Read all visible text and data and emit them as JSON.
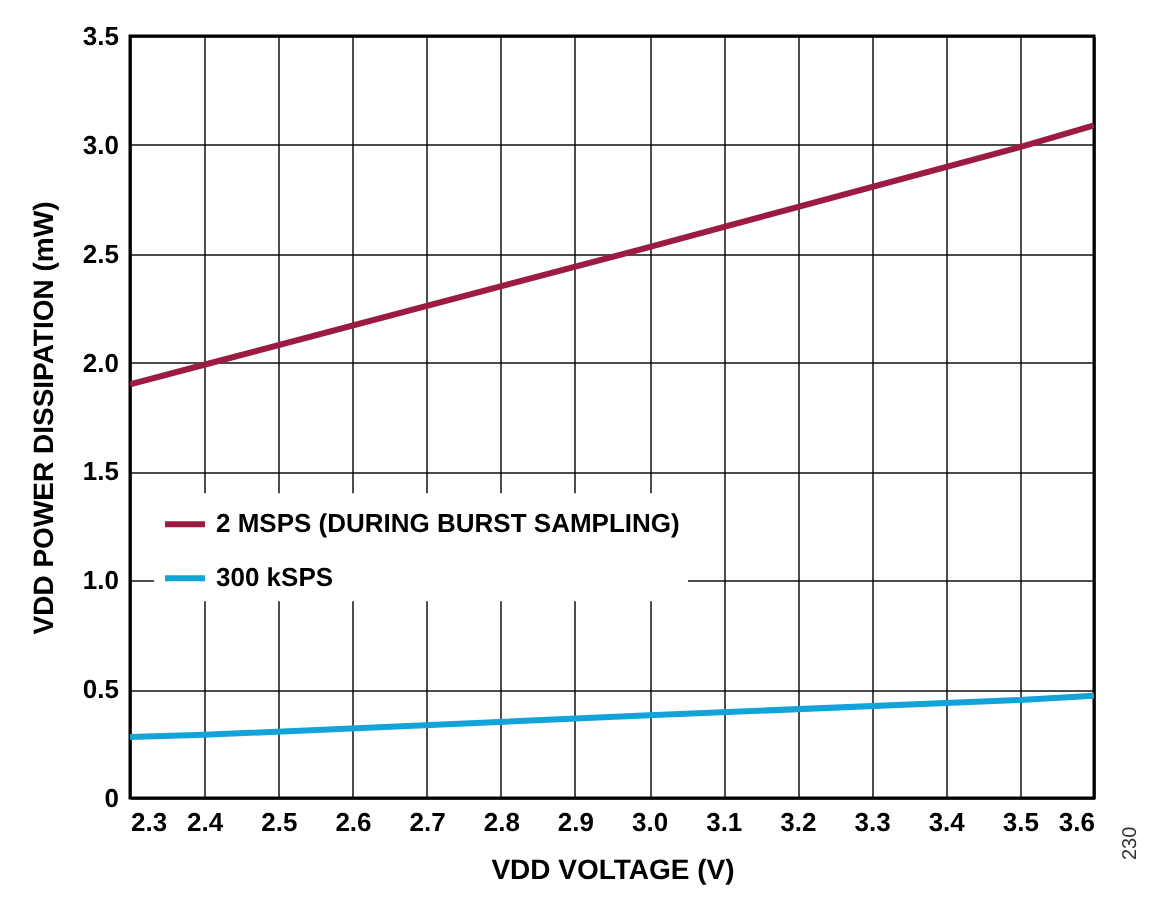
{
  "chart_data": {
    "type": "line",
    "xlabel": "VDD VOLTAGE (V)",
    "ylabel": "VDD POWER DISSIPATION (mW)",
    "x": [
      2.3,
      2.4,
      3.0,
      3.5,
      3.6
    ],
    "series": [
      {
        "name": "2 MSPS (DURING BURST SAMPLING)",
        "color": "#9b1b42",
        "values": [
          1.9,
          1.99,
          2.53,
          2.99,
          3.09
        ]
      },
      {
        "name": "300 kSPS",
        "color": "#12a3d9",
        "values": [
          0.28,
          0.29,
          0.38,
          0.45,
          0.47
        ]
      }
    ],
    "xlim": [
      2.3,
      3.6
    ],
    "xticks": [
      2.3,
      2.4,
      2.5,
      2.6,
      2.7,
      2.8,
      2.9,
      {
        "value": 3,
        "label": "3.0"
      },
      3.1,
      3.2,
      3.3,
      3.4,
      3.5,
      3.6
    ],
    "ylim": [
      0,
      3.5
    ],
    "yticks": [
      0,
      0.5,
      {
        "value": 1,
        "label": "1.0"
      },
      1.5,
      {
        "value": 2,
        "label": "2.0"
      },
      2.5,
      {
        "value": 3,
        "label": "3.0"
      },
      3.5
    ],
    "grid": true,
    "legend": "center left",
    "annotations": [
      "230"
    ]
  }
}
